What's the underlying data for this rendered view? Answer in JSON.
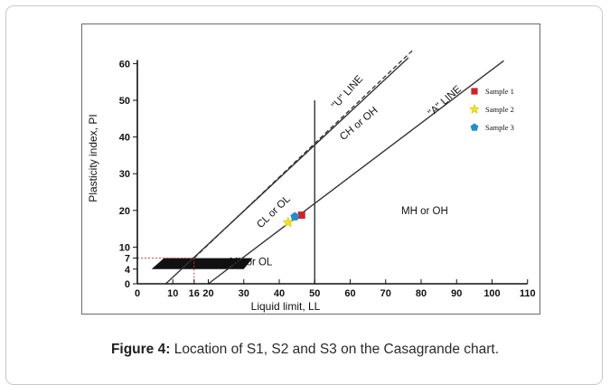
{
  "caption": {
    "label": "Figure 4:",
    "text": "Location of S1, S2 and S3 on the Casagrande chart."
  },
  "colors": {
    "sample1": "#d42027",
    "sample2": "#f4e21b",
    "sample3": "#1f8fd0",
    "line": "#333333",
    "dotted_red": "#d04040"
  },
  "chart_data": {
    "type": "scatter",
    "title": "",
    "xlabel": "Liquid limit, LL",
    "ylabel": "Plasticity index, PI",
    "xlim": [
      0,
      110
    ],
    "ylim": [
      0,
      60
    ],
    "x_ticks": [
      0,
      10,
      16,
      20,
      30,
      40,
      50,
      60,
      70,
      80,
      90,
      100,
      110
    ],
    "y_ticks": [
      0,
      4,
      7,
      10,
      20,
      30,
      40,
      50,
      60
    ],
    "lines": [
      {
        "name": "\"U\" LINE",
        "from": [
          8,
          0
        ],
        "to": [
          76.4,
          61.6
        ],
        "style": "solid"
      },
      {
        "name": "\"A\" LINE",
        "from": [
          20,
          0
        ],
        "to": [
          103.3,
          60.8
        ],
        "style": "solid"
      },
      {
        "name": "",
        "from": [
          16,
          7
        ],
        "to": [
          78,
          64
        ],
        "style": "dashed"
      },
      {
        "name": "",
        "from": [
          50,
          0
        ],
        "to": [
          50,
          50
        ],
        "style": "solid"
      }
    ],
    "regions": [
      {
        "label": "CH or OH",
        "x": 63,
        "y": 43
      },
      {
        "label": "CL or OL",
        "x": 39,
        "y": 19
      },
      {
        "label": "MH or OH",
        "x": 81,
        "y": 19
      },
      {
        "label": "ML or OL",
        "x": 32,
        "y": 5
      }
    ],
    "series": [
      {
        "name": "Sample 1",
        "marker": "square",
        "color": "#d42027",
        "x": 46.3,
        "y": 18.7
      },
      {
        "name": "Sample 2",
        "marker": "star",
        "color": "#f4e21b",
        "x": 42.5,
        "y": 16.7
      },
      {
        "name": "Sample 3",
        "marker": "pentagon",
        "color": "#1f8fd0",
        "x": 44.4,
        "y": 18.3
      }
    ],
    "legend_position": "top-right"
  }
}
